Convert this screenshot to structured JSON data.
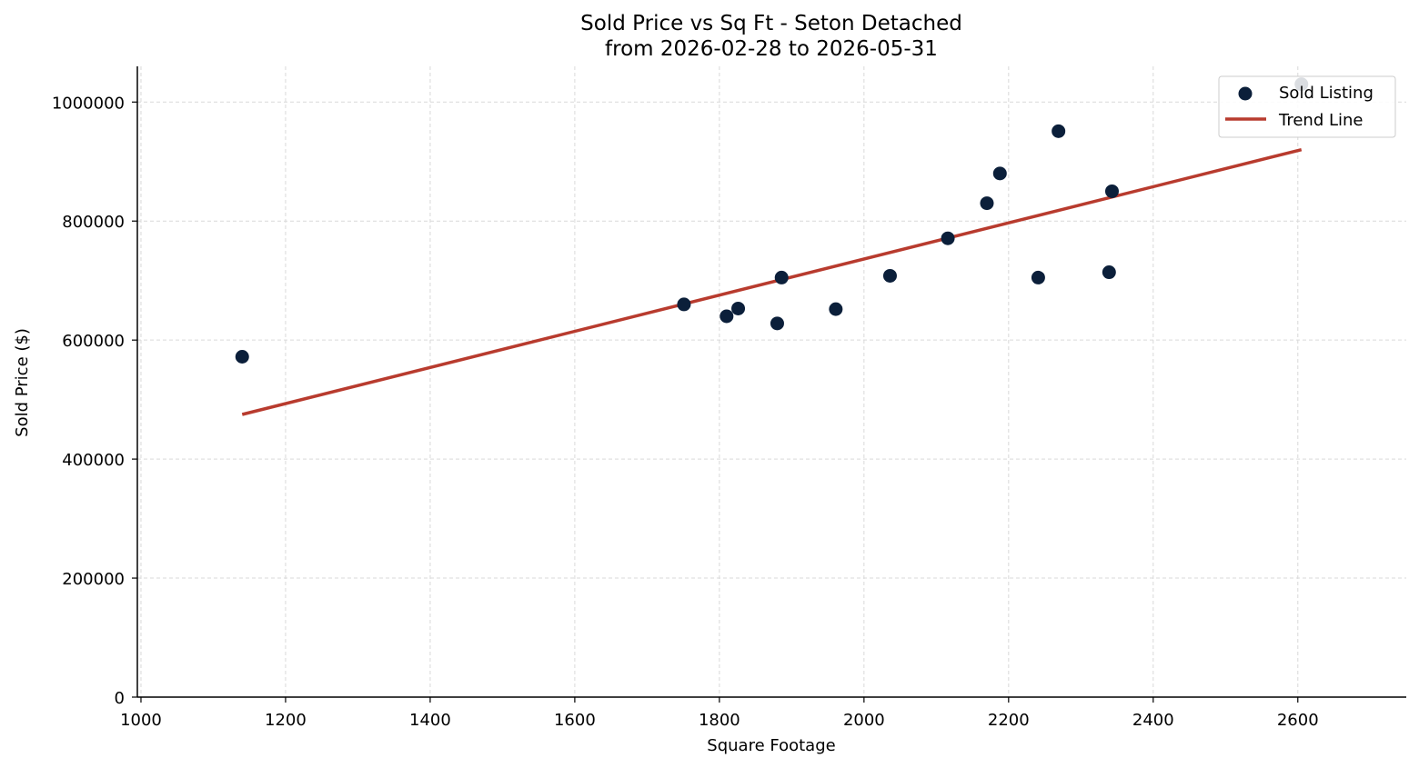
{
  "chart_data": {
    "type": "scatter",
    "title": [
      "Sold Price vs Sq Ft - Seton Detached",
      "from 2026-02-28 to 2026-05-31"
    ],
    "xlabel": "Square Footage",
    "ylabel": "Sold Price ($)",
    "xlim": [
      995,
      2750
    ],
    "ylim": [
      0,
      1060000
    ],
    "xticks": [
      1000,
      1200,
      1400,
      1600,
      1800,
      2000,
      2200,
      2400,
      2600
    ],
    "yticks": [
      0,
      200000,
      400000,
      600000,
      800000,
      1000000
    ],
    "grid": true,
    "legend_position": "top-right",
    "series": [
      {
        "name": "Sold Listing",
        "kind": "scatter",
        "color": "#0b1f3a",
        "points": [
          {
            "x": 1140,
            "y": 572000
          },
          {
            "x": 1751,
            "y": 660000
          },
          {
            "x": 1810,
            "y": 640000
          },
          {
            "x": 1826,
            "y": 653000
          },
          {
            "x": 1880,
            "y": 628000
          },
          {
            "x": 1886,
            "y": 705000
          },
          {
            "x": 1961,
            "y": 652000
          },
          {
            "x": 2036,
            "y": 708000
          },
          {
            "x": 2116,
            "y": 771000
          },
          {
            "x": 2170,
            "y": 830000
          },
          {
            "x": 2188,
            "y": 880000
          },
          {
            "x": 2241,
            "y": 705000
          },
          {
            "x": 2269,
            "y": 951000
          },
          {
            "x": 2339,
            "y": 714000
          },
          {
            "x": 2343,
            "y": 850000
          },
          {
            "x": 2605,
            "y": 1030000
          }
        ]
      },
      {
        "name": "Trend Line",
        "kind": "line",
        "color": "#b83b2e",
        "points": [
          {
            "x": 1140,
            "y": 475000
          },
          {
            "x": 2605,
            "y": 920000
          }
        ]
      }
    ]
  }
}
